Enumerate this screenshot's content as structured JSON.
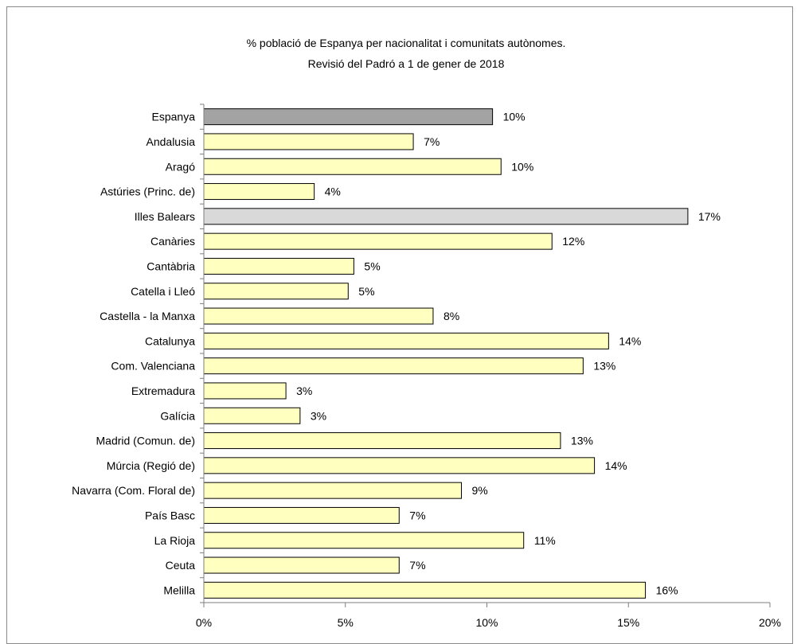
{
  "colors": {
    "default_bar": "#ffffc0",
    "spain_bar": "#a3a3a3",
    "balears_bar": "#d9d9d9",
    "bar_stroke": "#000000",
    "axis": "#7f7f7f",
    "frame": "#8a8a8a",
    "background": "#ffffff"
  },
  "chart_data": {
    "type": "bar",
    "orientation": "horizontal",
    "title": "% població de Espanya per nacionalitat i comunitats autònomes.",
    "subtitle": "Revisió del Padró a 1 de gener de 2018",
    "xlabel": "",
    "ylabel": "",
    "xlim": [
      0,
      20
    ],
    "x_ticks": [
      "0%",
      "5%",
      "10%",
      "15%",
      "20%"
    ],
    "grid": false,
    "legend": false,
    "categories": [
      "Espanya",
      "Andalusia",
      "Aragó",
      "Astúries (Princ. de)",
      "Illes Balears",
      "Canàries",
      "Cantàbria",
      "Catella i Lleó",
      "Castella - la Manxa",
      "Catalunya",
      "Com. Valenciana",
      "Extremadura",
      "Galícia",
      "Madrid (Comun. de)",
      "Múrcia (Regió de)",
      "Navarra (Com. Floral de)",
      "País Basc",
      "La Rioja",
      "Ceuta",
      "Melilla"
    ],
    "values": [
      10.2,
      7.4,
      10.5,
      3.9,
      17.1,
      12.3,
      5.3,
      5.1,
      8.1,
      14.3,
      13.4,
      2.9,
      3.4,
      12.6,
      13.8,
      9.1,
      6.9,
      11.3,
      6.9,
      15.6
    ],
    "value_labels": [
      "10%",
      "7%",
      "10%",
      "4%",
      "17%",
      "12%",
      "5%",
      "5%",
      "8%",
      "14%",
      "13%",
      "3%",
      "3%",
      "13%",
      "14%",
      "9%",
      "7%",
      "11%",
      "7%",
      "16%"
    ],
    "highlights": {
      "Espanya": "spain_bar",
      "Illes Balears": "balears_bar"
    }
  }
}
